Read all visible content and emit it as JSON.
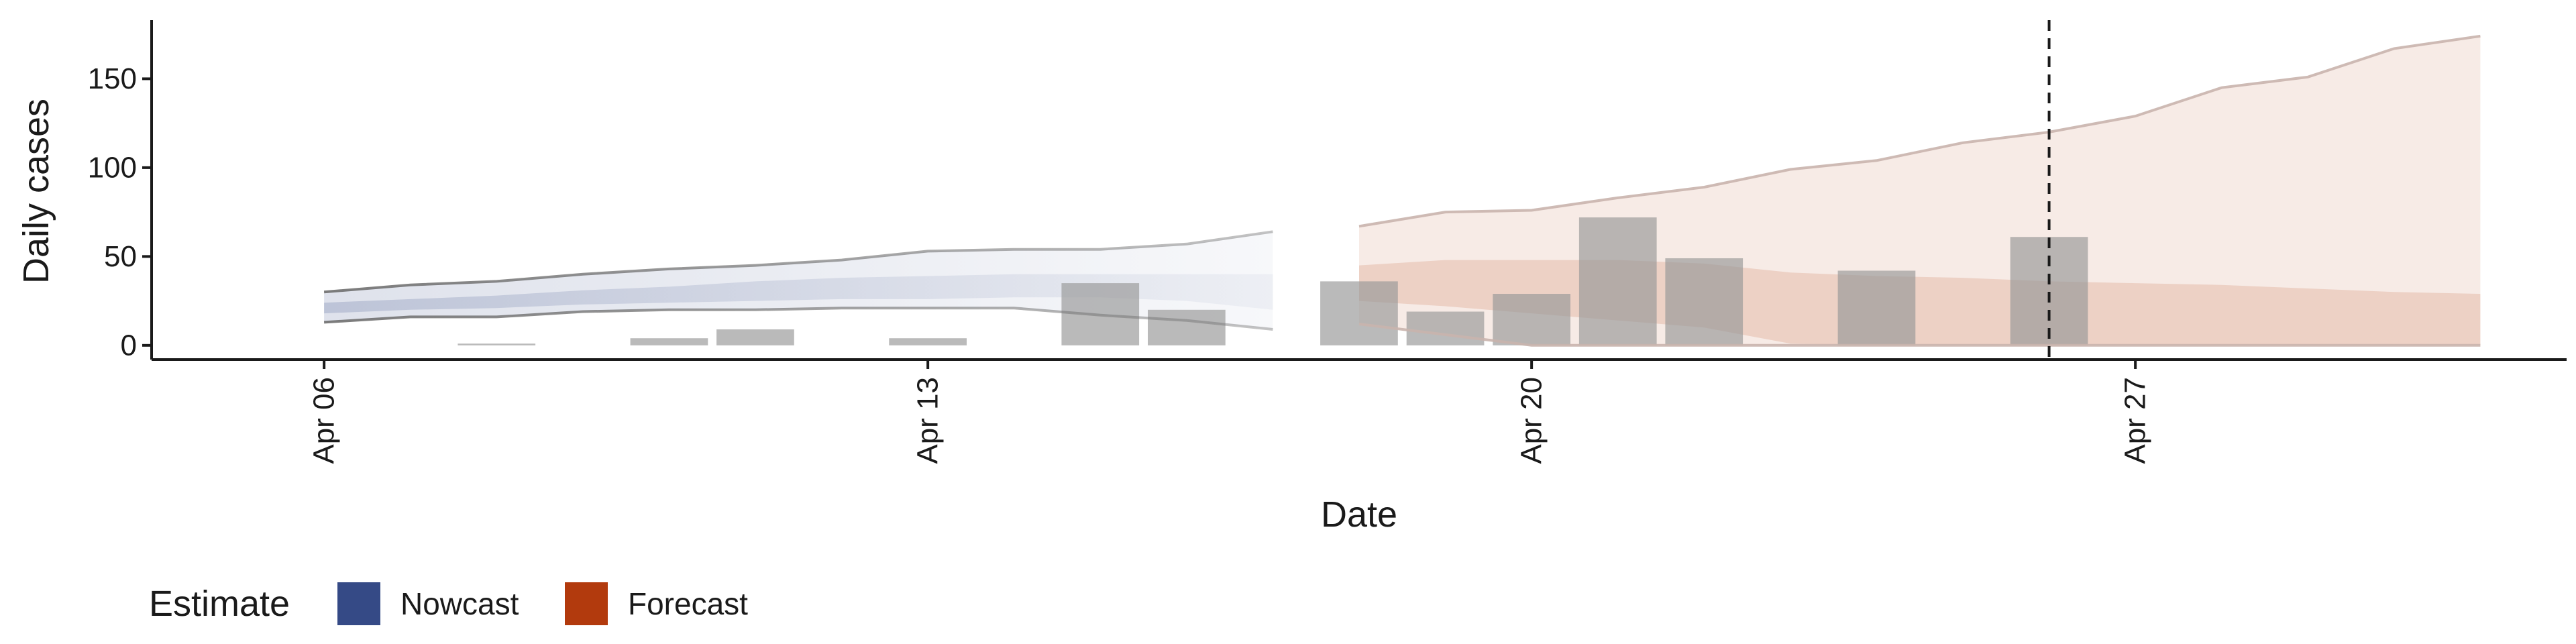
{
  "chart_data": {
    "type": "bar",
    "title": "",
    "xlabel": "Date",
    "ylabel": "Daily cases",
    "ylim": [
      -8,
      183
    ],
    "y_ticks": [
      0,
      50,
      100,
      150
    ],
    "x_ticks": [
      {
        "date": "2020-04-06",
        "label": "Apr 06"
      },
      {
        "date": "2020-04-13",
        "label": "Apr 13"
      },
      {
        "date": "2020-04-20",
        "label": "Apr 20"
      },
      {
        "date": "2020-04-27",
        "label": "Apr 27"
      }
    ],
    "xlim": [
      "2020-04-04",
      "2020-05-02"
    ],
    "grid": false,
    "legend_position": "bottom-left",
    "legend": {
      "title": "Estimate",
      "items": [
        {
          "label": "Nowcast",
          "color": "#354a86"
        },
        {
          "label": "Forecast",
          "color": "#b23a0d"
        }
      ]
    },
    "forecast_date_line": "2020-04-26",
    "observed_cases": {
      "color": "#9a9a9a",
      "points": [
        {
          "date": "2020-04-08",
          "value": 1
        },
        {
          "date": "2020-04-10",
          "value": 4
        },
        {
          "date": "2020-04-11",
          "value": 9
        },
        {
          "date": "2020-04-13",
          "value": 4
        },
        {
          "date": "2020-04-15",
          "value": 35
        },
        {
          "date": "2020-04-16",
          "value": 20
        },
        {
          "date": "2020-04-18",
          "value": 36
        },
        {
          "date": "2020-04-19",
          "value": 19
        },
        {
          "date": "2020-04-20",
          "value": 29
        },
        {
          "date": "2020-04-21",
          "value": 72
        },
        {
          "date": "2020-04-22",
          "value": 49
        },
        {
          "date": "2020-04-24",
          "value": 42
        },
        {
          "date": "2020-04-26",
          "value": 61
        }
      ]
    },
    "series": [
      {
        "estimate": "Nowcast",
        "color": "#354a86",
        "dates": [
          "2020-04-06",
          "2020-04-07",
          "2020-04-08",
          "2020-04-09",
          "2020-04-10",
          "2020-04-11",
          "2020-04-12",
          "2020-04-13",
          "2020-04-14",
          "2020-04-15",
          "2020-04-16",
          "2020-04-17"
        ],
        "upper90": [
          30,
          34,
          36,
          40,
          43,
          45,
          48,
          53,
          54,
          54,
          57,
          64
        ],
        "lower90": [
          13,
          16,
          16,
          19,
          20,
          20,
          21,
          21,
          21,
          17,
          14,
          9
        ],
        "upper50": [
          24,
          26,
          28,
          31,
          33,
          36,
          38,
          39,
          40,
          40,
          40,
          40
        ],
        "lower50": [
          18,
          20,
          21,
          23,
          24,
          25,
          26,
          26,
          27,
          27,
          25,
          20
        ]
      },
      {
        "estimate": "Forecast",
        "color": "#b23a0d",
        "dates": [
          "2020-04-18",
          "2020-04-19",
          "2020-04-20",
          "2020-04-21",
          "2020-04-22",
          "2020-04-23",
          "2020-04-24",
          "2020-04-25",
          "2020-04-26",
          "2020-04-27",
          "2020-04-28",
          "2020-04-29",
          "2020-04-30",
          "2020-05-01"
        ],
        "upper90": [
          67,
          75,
          76,
          83,
          89,
          99,
          104,
          114,
          120,
          129,
          145,
          151,
          167,
          174
        ],
        "lower90": [
          12,
          6,
          0,
          0,
          0,
          0,
          0,
          0,
          0,
          0,
          0,
          0,
          0,
          0
        ],
        "upper50": [
          45,
          48,
          48,
          48,
          46,
          41,
          39,
          38,
          36,
          35,
          34,
          32,
          30,
          29
        ],
        "lower50": [
          25,
          22,
          18,
          14,
          10,
          1,
          0,
          0,
          0,
          0,
          0,
          0,
          0,
          0
        ]
      }
    ]
  }
}
